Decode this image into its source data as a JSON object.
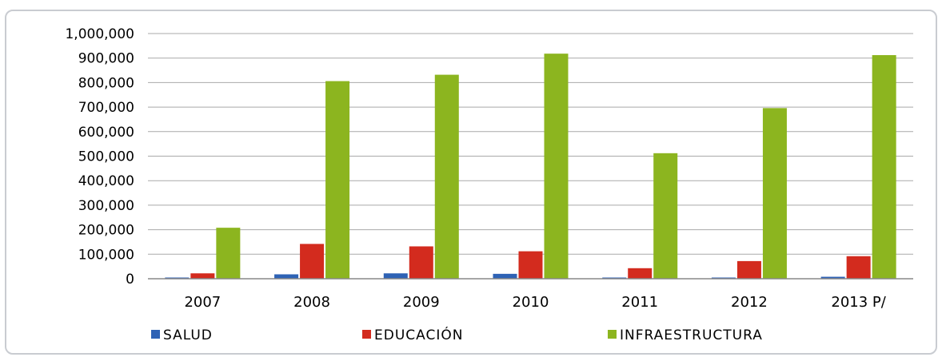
{
  "chart_data": {
    "type": "bar",
    "categories": [
      "2007",
      "2008",
      "2009",
      "2010",
      "2011",
      "2012",
      "2013 P/"
    ],
    "series": [
      {
        "name": "SALUD",
        "color": "#2e62b5",
        "values": [
          3000,
          18000,
          22000,
          20000,
          3000,
          2000,
          8000
        ]
      },
      {
        "name": "EDUCACIÓN",
        "color": "#d32b1e",
        "values": [
          22000,
          142000,
          132000,
          112000,
          43000,
          72000,
          92000
        ]
      },
      {
        "name": "INFRAESTRUCTURA",
        "color": "#8cb51f",
        "values": [
          208000,
          806000,
          832000,
          918000,
          512000,
          696000,
          912000
        ]
      }
    ],
    "yticks": [
      "1,000,000",
      "900,000",
      "800,000",
      "700,000",
      "600,000",
      "500,000",
      "400,000",
      "300,000",
      "200,000",
      "100,000",
      "0"
    ],
    "ylim": [
      0,
      1000000
    ],
    "grid": true,
    "legend_position": "bottom"
  }
}
